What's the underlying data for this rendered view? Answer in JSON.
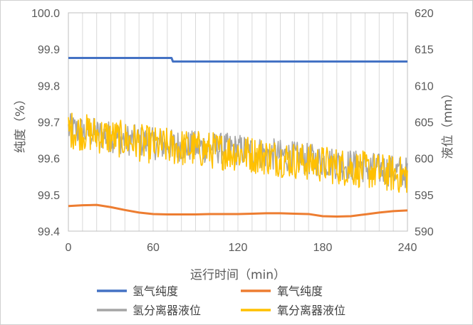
{
  "chart_data": {
    "type": "line",
    "xlabel": "运行时间（min）",
    "ylabel": "纯度（%）",
    "y2label": "液位（mm）",
    "xlim": [
      0,
      240
    ],
    "ylim": [
      99.4,
      100.0
    ],
    "y2lim": [
      590,
      620
    ],
    "x_ticks": [
      "0",
      "60",
      "120",
      "180",
      "240"
    ],
    "y_ticks": [
      "100.0",
      "99.9",
      "99.8",
      "99.7",
      "99.6",
      "99.5",
      "99.4"
    ],
    "y2_ticks": [
      "620",
      "615",
      "610",
      "605",
      "600",
      "595",
      "590"
    ],
    "grid": "vertical",
    "legend_position": "bottom",
    "series": [
      {
        "name": "氢气纯度",
        "axis": "left",
        "color": "#4472C4",
        "x": [
          0,
          73,
          74,
          240
        ],
        "y": [
          99.876,
          99.876,
          99.866,
          99.866
        ]
      },
      {
        "name": "氧气纯度",
        "axis": "left",
        "color": "#ED7D31",
        "x": [
          0,
          10,
          20,
          30,
          40,
          50,
          60,
          70,
          80,
          90,
          100,
          110,
          120,
          130,
          140,
          150,
          160,
          170,
          180,
          190,
          200,
          210,
          220,
          230,
          240
        ],
        "y": [
          99.469,
          99.471,
          99.472,
          99.466,
          99.458,
          99.451,
          99.447,
          99.446,
          99.446,
          99.446,
          99.447,
          99.447,
          99.447,
          99.448,
          99.449,
          99.449,
          99.448,
          99.447,
          99.441,
          99.44,
          99.441,
          99.446,
          99.451,
          99.455,
          99.457
        ]
      },
      {
        "name": "氢分离器液位",
        "axis": "right",
        "color": "#A5A5A5",
        "trend_x": [
          0,
          60,
          120,
          180,
          240
        ],
        "trend_y": [
          604,
          602,
          601.2,
          599.6,
          598
        ],
        "noise_amplitude": 2.2
      },
      {
        "name": "氧分离器液位",
        "axis": "right",
        "color": "#FFC000",
        "trend_x": [
          0,
          60,
          120,
          180,
          240
        ],
        "trend_y": [
          604,
          601.8,
          600.8,
          599.2,
          597.6
        ],
        "noise_amplitude": 2.6
      }
    ]
  }
}
